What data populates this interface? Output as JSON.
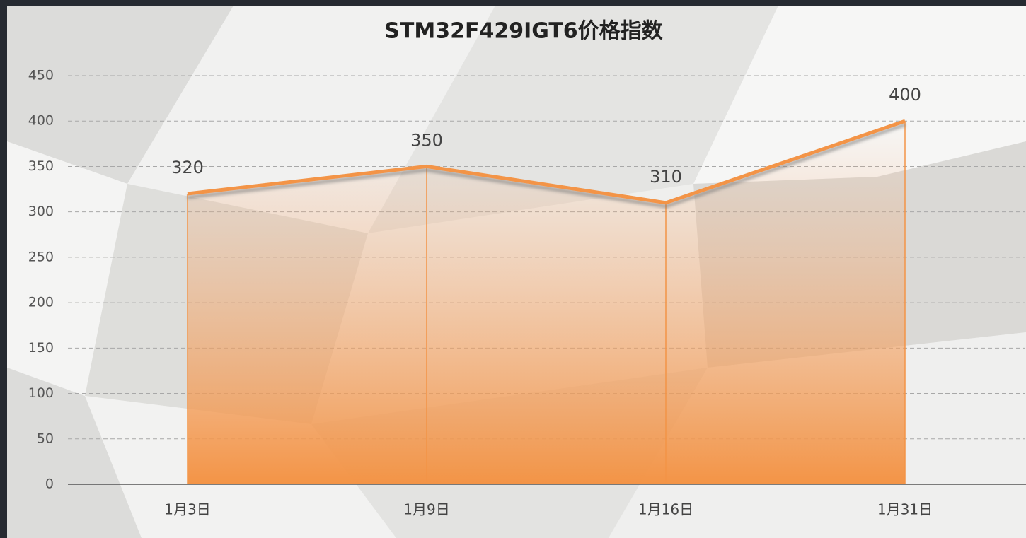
{
  "chart_data": {
    "type": "area",
    "title": "STM32F429IGT6价格指数",
    "categories": [
      "1月3日",
      "1月9日",
      "1月16日",
      "1月31日"
    ],
    "values": [
      320,
      350,
      310,
      400
    ],
    "color": "#f39446",
    "ylim": [
      0,
      450
    ],
    "yticks": [
      0,
      50,
      100,
      150,
      200,
      250,
      300,
      350,
      400,
      450
    ],
    "grid": true
  }
}
